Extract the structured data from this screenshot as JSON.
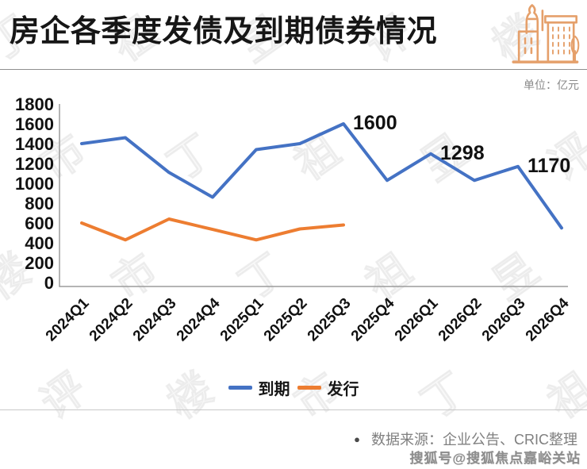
{
  "header": {
    "title": "房企各季度发债及到期债券情况",
    "icon": "buildings-icon",
    "icon_color": "#E5A06B"
  },
  "unit_label": "单位：亿元",
  "chart_data": {
    "type": "line",
    "title": "房企各季度发债及到期债券情况",
    "unit": "亿元",
    "categories": [
      "2024Q1",
      "2024Q2",
      "2024Q3",
      "2024Q4",
      "2025Q1",
      "2025Q2",
      "2025Q3",
      "2025Q4",
      "2026Q1",
      "2026Q2",
      "2026Q3",
      "2026Q4"
    ],
    "series": [
      {
        "name": "到期",
        "color": "#4472C4",
        "values": [
          1400,
          1460,
          1110,
          860,
          1340,
          1400,
          1600,
          1030,
          1298,
          1030,
          1170,
          550
        ]
      },
      {
        "name": "发行",
        "color": "#ED7D31",
        "values": [
          600,
          430,
          640,
          535,
          430,
          540,
          580,
          null,
          null,
          null,
          null,
          null
        ]
      }
    ],
    "annotations": [
      {
        "series": "到期",
        "index": 6,
        "text": "1600"
      },
      {
        "series": "到期",
        "index": 8,
        "text": "1298"
      },
      {
        "series": "到期",
        "index": 10,
        "text": "1170"
      }
    ],
    "ylim": [
      0,
      1800
    ],
    "ytick_step": 200,
    "grid": false,
    "legend_position": "bottom"
  },
  "footer": {
    "bullet": "●",
    "source": "数据来源：企业公告、CRIC整理",
    "credit": "搜狐号@搜狐焦点嘉峪关站"
  },
  "watermark": {
    "pattern_text": "丁祖昱评楼市"
  }
}
